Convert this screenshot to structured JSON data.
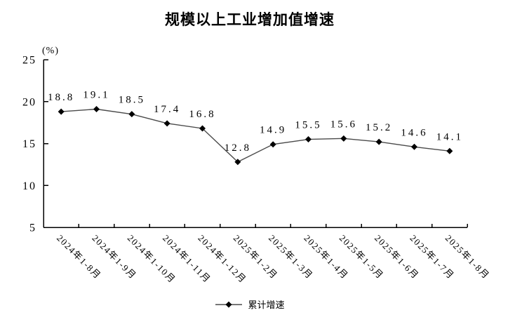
{
  "colors": {
    "background": "#ffffff",
    "line": "#4a4a4a",
    "marker": "#000000",
    "axis": "#000000",
    "text": "#000000"
  },
  "chart_data": {
    "type": "line",
    "title": "规模以上工业增加值增速",
    "unit_label": "(%)",
    "categories": [
      "2024年1-8月",
      "2024年1-9月",
      "2024年1-10月",
      "2024年1-11月",
      "2024年1-12月",
      "2025年1-2月",
      "2025年1-3月",
      "2025年1-4月",
      "2025年1-5月",
      "2025年1-6月",
      "2025年1-7月",
      "2025年1-8月"
    ],
    "series": [
      {
        "name": "累计增速",
        "values": [
          18.8,
          19.1,
          18.5,
          17.4,
          16.8,
          12.8,
          14.9,
          15.5,
          15.6,
          15.2,
          14.6,
          14.1
        ]
      }
    ],
    "ylim": [
      5,
      25
    ],
    "yticks": [
      5,
      10,
      15,
      20,
      25
    ],
    "grid": false,
    "data_labels": true,
    "marker": "diamond",
    "legend_position": "bottom"
  }
}
